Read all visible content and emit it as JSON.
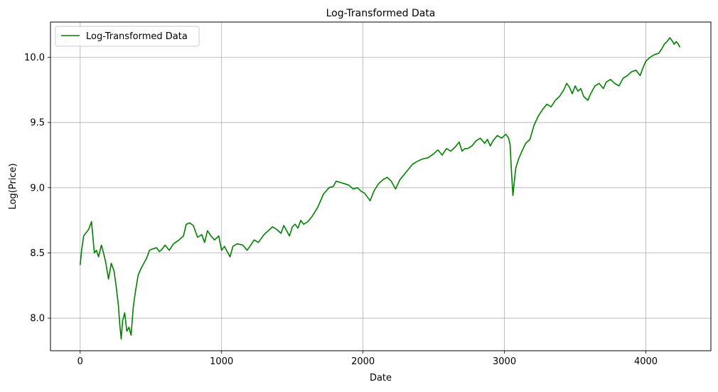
{
  "chart_data": {
    "type": "line",
    "title": "Log-Transformed Data",
    "xlabel": "Date",
    "ylabel": "Log(Price)",
    "xlim": [
      -210,
      4460
    ],
    "ylim": [
      7.75,
      10.27
    ],
    "xticks": [
      0,
      1000,
      2000,
      3000,
      4000
    ],
    "yticks": [
      8.0,
      8.5,
      9.0,
      9.5,
      10.0
    ],
    "xtick_labels": [
      "0",
      "1000",
      "2000",
      "3000",
      "4000"
    ],
    "ytick_labels": [
      "8.0",
      "8.5",
      "9.0",
      "9.5",
      "10.0"
    ],
    "grid": true,
    "legend_position": "top-left",
    "series": [
      {
        "name": "Log-Transformed Data",
        "color": "#008000",
        "x": [
          0,
          10,
          25,
          45,
          60,
          80,
          90,
          100,
          115,
          130,
          150,
          165,
          180,
          200,
          220,
          240,
          255,
          270,
          280,
          290,
          300,
          315,
          330,
          345,
          360,
          375,
          390,
          410,
          430,
          450,
          470,
          490,
          510,
          540,
          560,
          580,
          600,
          630,
          660,
          700,
          730,
          750,
          775,
          800,
          830,
          860,
          880,
          900,
          925,
          950,
          980,
          1000,
          1020,
          1040,
          1060,
          1080,
          1110,
          1150,
          1180,
          1200,
          1230,
          1260,
          1300,
          1330,
          1360,
          1390,
          1420,
          1440,
          1460,
          1480,
          1500,
          1520,
          1540,
          1560,
          1580,
          1610,
          1640,
          1680,
          1720,
          1760,
          1790,
          1810,
          1840,
          1870,
          1900,
          1930,
          1960,
          1990,
          2010,
          2030,
          2050,
          2080,
          2110,
          2140,
          2170,
          2200,
          2230,
          2260,
          2290,
          2320,
          2350,
          2380,
          2420,
          2460,
          2500,
          2530,
          2560,
          2590,
          2620,
          2650,
          2680,
          2700,
          2720,
          2740,
          2770,
          2800,
          2830,
          2860,
          2880,
          2900,
          2920,
          2950,
          2980,
          3010,
          3030,
          3040,
          3050,
          3060,
          3070,
          3080,
          3100,
          3120,
          3150,
          3180,
          3210,
          3240,
          3270,
          3300,
          3330,
          3360,
          3390,
          3420,
          3440,
          3460,
          3480,
          3500,
          3520,
          3540,
          3560,
          3590,
          3610,
          3640,
          3670,
          3700,
          3720,
          3750,
          3780,
          3810,
          3840,
          3870,
          3900,
          3930,
          3960,
          3980,
          4000,
          4030,
          4060,
          4090,
          4110,
          4130,
          4150,
          4170,
          4190,
          4200,
          4215,
          4230,
          4240
        ],
        "y": [
          8.41,
          8.52,
          8.63,
          8.66,
          8.68,
          8.74,
          8.62,
          8.5,
          8.52,
          8.47,
          8.56,
          8.5,
          8.43,
          8.3,
          8.42,
          8.36,
          8.24,
          8.1,
          7.95,
          7.84,
          7.98,
          8.04,
          7.9,
          7.93,
          7.87,
          8.08,
          8.2,
          8.33,
          8.38,
          8.42,
          8.46,
          8.52,
          8.53,
          8.54,
          8.51,
          8.53,
          8.56,
          8.52,
          8.57,
          8.6,
          8.63,
          8.72,
          8.73,
          8.71,
          8.62,
          8.64,
          8.58,
          8.67,
          8.63,
          8.6,
          8.63,
          8.52,
          8.55,
          8.51,
          8.47,
          8.55,
          8.57,
          8.56,
          8.52,
          8.55,
          8.6,
          8.58,
          8.64,
          8.67,
          8.7,
          8.68,
          8.65,
          8.71,
          8.67,
          8.63,
          8.7,
          8.72,
          8.69,
          8.75,
          8.72,
          8.74,
          8.78,
          8.85,
          8.95,
          9.0,
          9.01,
          9.05,
          9.04,
          9.03,
          9.02,
          8.99,
          9.0,
          8.97,
          8.96,
          8.93,
          8.9,
          8.98,
          9.03,
          9.06,
          9.08,
          9.05,
          8.99,
          9.06,
          9.1,
          9.14,
          9.18,
          9.2,
          9.22,
          9.23,
          9.26,
          9.29,
          9.25,
          9.3,
          9.28,
          9.31,
          9.35,
          9.28,
          9.3,
          9.3,
          9.32,
          9.36,
          9.38,
          9.34,
          9.37,
          9.32,
          9.36,
          9.4,
          9.38,
          9.41,
          9.38,
          9.33,
          9.12,
          8.94,
          9.05,
          9.15,
          9.22,
          9.27,
          9.34,
          9.37,
          9.48,
          9.55,
          9.6,
          9.64,
          9.62,
          9.67,
          9.7,
          9.75,
          9.8,
          9.77,
          9.72,
          9.78,
          9.74,
          9.76,
          9.7,
          9.67,
          9.72,
          9.78,
          9.8,
          9.76,
          9.81,
          9.83,
          9.8,
          9.78,
          9.84,
          9.86,
          9.89,
          9.9,
          9.86,
          9.92,
          9.97,
          10.0,
          10.02,
          10.03,
          10.06,
          10.1,
          10.12,
          10.15,
          10.12,
          10.1,
          10.12,
          10.1,
          10.08
        ]
      }
    ]
  }
}
